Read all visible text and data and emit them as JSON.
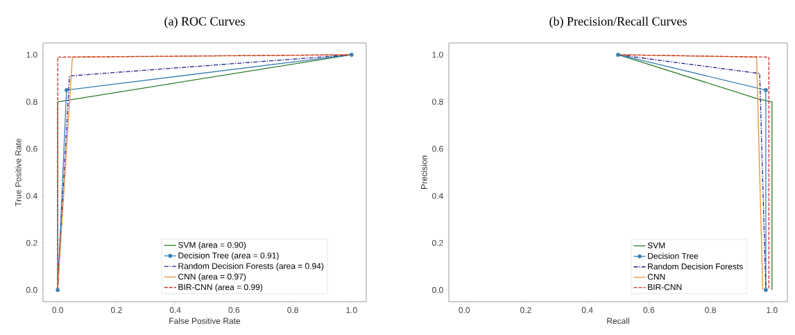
{
  "chart_data": [
    {
      "type": "line",
      "title": "(a) ROC Curves",
      "xlabel": "False Positive Rate",
      "ylabel": "True Positive Rate",
      "xlim": [
        -0.05,
        1.05
      ],
      "ylim": [
        -0.05,
        1.05
      ],
      "xticks": [
        {
          "value": 0,
          "label": "0.0"
        },
        {
          "value": 0.2,
          "label": "0.2"
        },
        {
          "value": 0.4,
          "label": "0.4"
        },
        {
          "value": 0.6,
          "label": "0.6"
        },
        {
          "value": 0.8,
          "label": "0.8"
        },
        {
          "value": 1,
          "label": "1.0"
        }
      ],
      "yticks": [
        {
          "value": 0,
          "label": "0.0"
        },
        {
          "value": 0.2,
          "label": "0.2"
        },
        {
          "value": 0.4,
          "label": "0.4"
        },
        {
          "value": 0.6,
          "label": "0.6"
        },
        {
          "value": 0.8,
          "label": "0.8"
        },
        {
          "value": 1,
          "label": "1.0"
        }
      ],
      "legend": "bottom right",
      "grid": false,
      "series": [
        {
          "name": "SVM (area = 0.90)",
          "color": "#2a7d2a",
          "x": [
            0,
            0,
            1
          ],
          "values": [
            0,
            0.8,
            1
          ],
          "line_style": "solid"
        },
        {
          "name": "Decision Tree (area = 0.91)",
          "color": "#3a80b5",
          "x": [
            0,
            0.03,
            1
          ],
          "values": [
            0,
            0.85,
            1
          ],
          "line_style": "solid",
          "marker": "circle"
        },
        {
          "name": "Random Decision Forests (area = 0.94)",
          "color": "#1c1c8a",
          "x": [
            0,
            0.04,
            1
          ],
          "values": [
            0,
            0.91,
            1
          ],
          "line_style": "dashdot"
        },
        {
          "name": "CNN (area = 0.97)",
          "color": "#e8903a",
          "x": [
            0,
            0.05,
            1
          ],
          "values": [
            0,
            0.99,
            1
          ],
          "line_style": "solid"
        },
        {
          "name": "BIR-CNN (area = 0.99)",
          "color": "#c8302c",
          "x": [
            0,
            0,
            1
          ],
          "values": [
            0,
            0.99,
            1
          ],
          "line_style": "dashed"
        }
      ]
    },
    {
      "type": "line",
      "title": "(b) Precision/Recall Curves",
      "xlabel": "Recall",
      "ylabel": "Precision",
      "xlim": [
        -0.05,
        1.05
      ],
      "ylim": [
        -0.05,
        1.05
      ],
      "xticks": [
        {
          "value": 0,
          "label": "0.0"
        },
        {
          "value": 0.2,
          "label": "0.2"
        },
        {
          "value": 0.4,
          "label": "0.4"
        },
        {
          "value": 0.6,
          "label": "0.6"
        },
        {
          "value": 0.8,
          "label": "0.8"
        },
        {
          "value": 1,
          "label": "1.0"
        }
      ],
      "yticks": [
        {
          "value": 0,
          "label": "0.0"
        },
        {
          "value": 0.2,
          "label": "0.2"
        },
        {
          "value": 0.4,
          "label": "0.4"
        },
        {
          "value": 0.6,
          "label": "0.6"
        },
        {
          "value": 0.8,
          "label": "0.8"
        },
        {
          "value": 1,
          "label": "1.0"
        }
      ],
      "legend": "bottom right",
      "grid": false,
      "series": [
        {
          "name": "SVM",
          "color": "#2a7d2a",
          "x": [
            0.5,
            0.96,
            1,
            1
          ],
          "values": [
            1,
            0.81,
            0.8,
            0
          ],
          "line_style": "solid"
        },
        {
          "name": "Decision Tree",
          "color": "#3a80b5",
          "x": [
            0.5,
            0.98,
            0.98
          ],
          "values": [
            1,
            0.85,
            0
          ],
          "line_style": "solid",
          "marker": "circle"
        },
        {
          "name": "Random Decision Forests",
          "color": "#1c1c8a",
          "x": [
            0.5,
            0.96,
            0.98
          ],
          "values": [
            1,
            0.92,
            0
          ],
          "line_style": "dashdot"
        },
        {
          "name": "CNN",
          "color": "#e8903a",
          "x": [
            0.5,
            0.95,
            0.97
          ],
          "values": [
            1,
            0.99,
            0
          ],
          "line_style": "solid"
        },
        {
          "name": "BIR-CNN",
          "color": "#c8302c",
          "x": [
            0.5,
            0.99,
            0.99
          ],
          "values": [
            1,
            0.99,
            0
          ],
          "line_style": "dashed"
        }
      ]
    }
  ]
}
